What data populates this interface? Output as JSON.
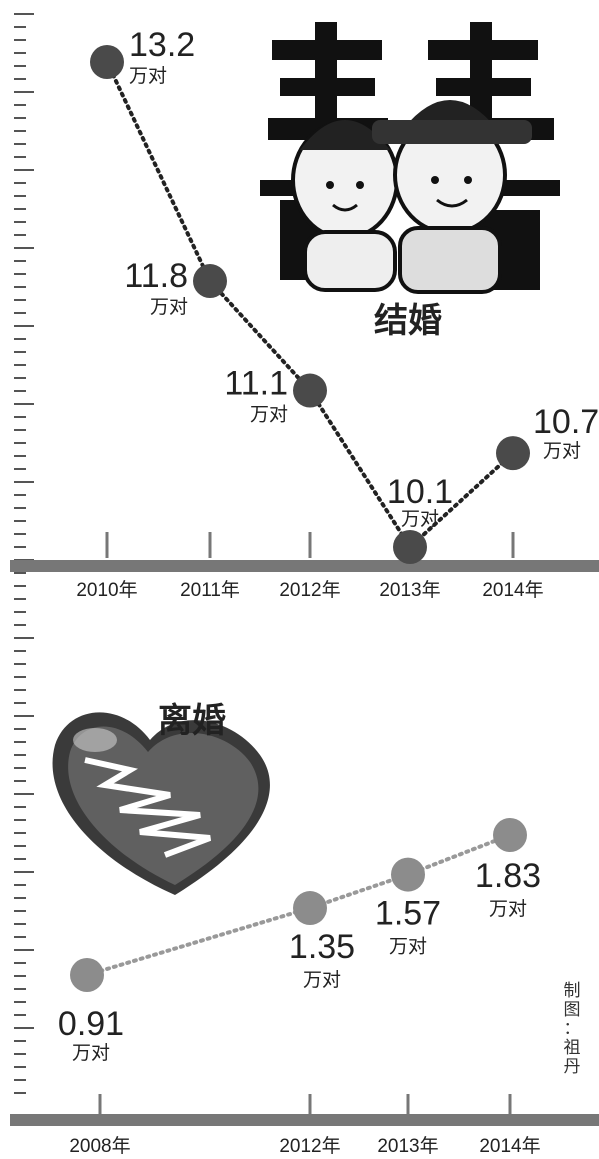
{
  "colors": {
    "marriage_dot": "#4a4a4a",
    "divorce_dot": "#8c8c8c",
    "axis": "#777777",
    "ruler": "#555555",
    "text": "#222222"
  },
  "credit": {
    "line1": "制",
    "line2": "图",
    "line3": "：",
    "line4": "祖",
    "line5": "丹"
  },
  "chart_data": [
    {
      "type": "line",
      "title": "结婚",
      "unit": "万对",
      "x": [
        "2010年",
        "2011年",
        "2012年",
        "2013年",
        "2014年"
      ],
      "values": [
        13.2,
        11.8,
        11.1,
        10.1,
        10.7
      ],
      "value_labels": [
        "13.2",
        "11.8",
        "11.1",
        "10.1",
        "10.7"
      ],
      "icon": "wedding-couple-double-happiness-icon"
    },
    {
      "type": "line",
      "title": "离婚",
      "unit": "万对",
      "x": [
        "2008年",
        "2012年",
        "2013年",
        "2014年"
      ],
      "values": [
        0.91,
        1.35,
        1.57,
        1.83
      ],
      "value_labels": [
        "0.91",
        "1.35",
        "1.57",
        "1.83"
      ],
      "icon": "broken-heart-icon"
    }
  ]
}
